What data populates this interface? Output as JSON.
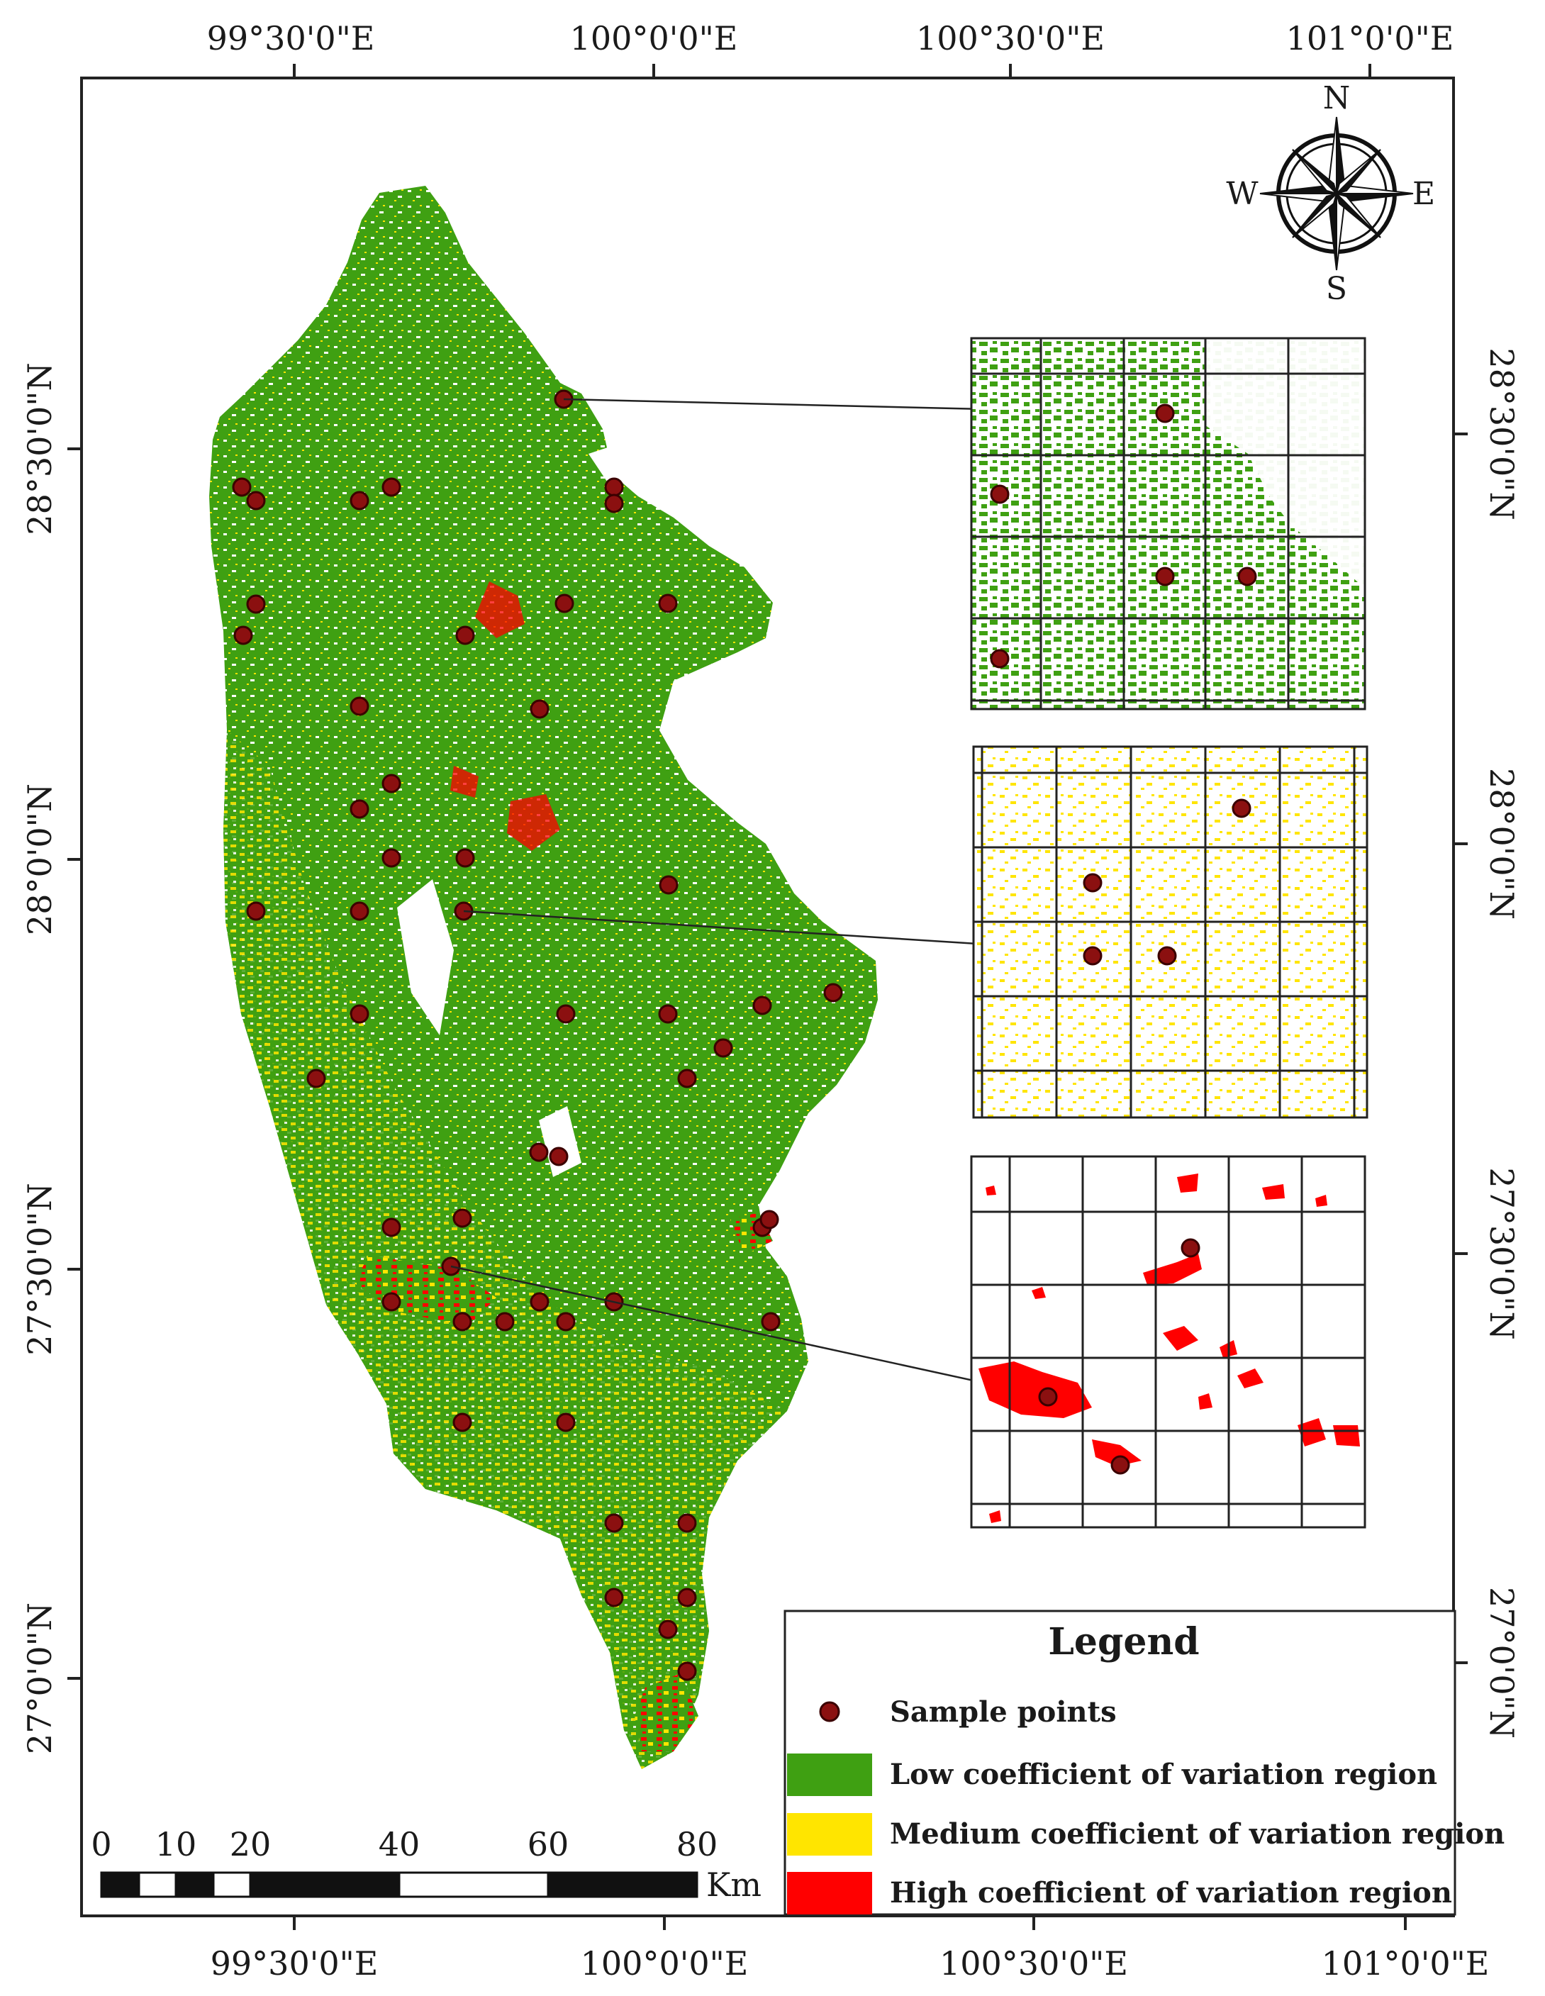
{
  "top_lon_labels": [
    "99°30'0\"E",
    "100°0'0\"E",
    "100°30'0\"E",
    "101°0'0\"E"
  ],
  "bottom_lon_labels": [
    "99°30'0\"E",
    "100°0'0\"E",
    "100°30'0\"E",
    "101°0'0\"E"
  ],
  "left_lat_labels": [
    "28°30'0\"N",
    "28°0'0\"N",
    "27°30'0\"N",
    "27°0'0\"N"
  ],
  "right_lat_labels": [
    "28°30'0\"N",
    "28°0'0\"N",
    "27°30'0\"N",
    "27°0'0\"N"
  ],
  "compass": {
    "n": "N",
    "s": "S",
    "e": "E",
    "w": "W"
  },
  "legend": {
    "title": "Legend",
    "items": [
      {
        "label": "Sample points",
        "color": "#8b1010"
      },
      {
        "label": "Low coefficient of variation region",
        "color": "#3fa012"
      },
      {
        "label": "Medium coefficient of variation region",
        "color": "#ffe500"
      },
      {
        "label": "High coefficient of variation region",
        "color": "#ff0000"
      }
    ]
  },
  "scale_bar": {
    "ticks": [
      "0",
      "10",
      "20",
      "40",
      "60",
      "80"
    ],
    "unit": "Km"
  },
  "colors": {
    "low": "#3fa012",
    "medium": "#ffe500",
    "high": "#ff0000",
    "sample": "#8b1010",
    "frame": "#222222"
  }
}
